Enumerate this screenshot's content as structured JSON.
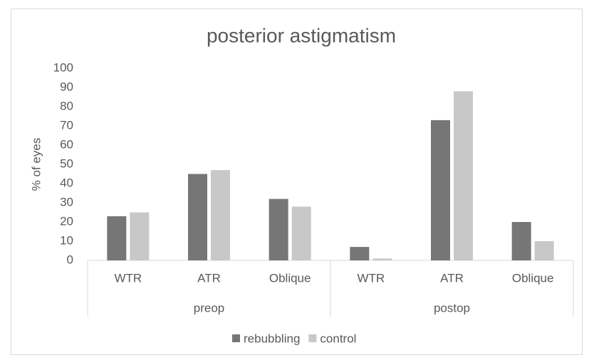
{
  "chart_data": {
    "type": "bar",
    "title": "posterior astigmatism",
    "y_label": "% of eyes",
    "groups": [
      {
        "name": "preop",
        "categories": [
          "WTR",
          "ATR",
          "Oblique"
        ]
      },
      {
        "name": "postop",
        "categories": [
          "WTR",
          "ATR",
          "Oblique"
        ]
      }
    ],
    "series": [
      {
        "name": "rebubbling",
        "color": "#767676",
        "values": [
          23,
          45,
          32,
          7,
          73,
          20
        ]
      },
      {
        "name": "control",
        "color": "#c8c8c8",
        "values": [
          25,
          47,
          28,
          1,
          88,
          10
        ]
      }
    ],
    "ylim": [
      0,
      100
    ],
    "yticks": [
      0,
      10,
      20,
      30,
      40,
      50,
      60,
      70,
      80,
      90,
      100
    ],
    "grid": false,
    "legend": "bottom"
  }
}
